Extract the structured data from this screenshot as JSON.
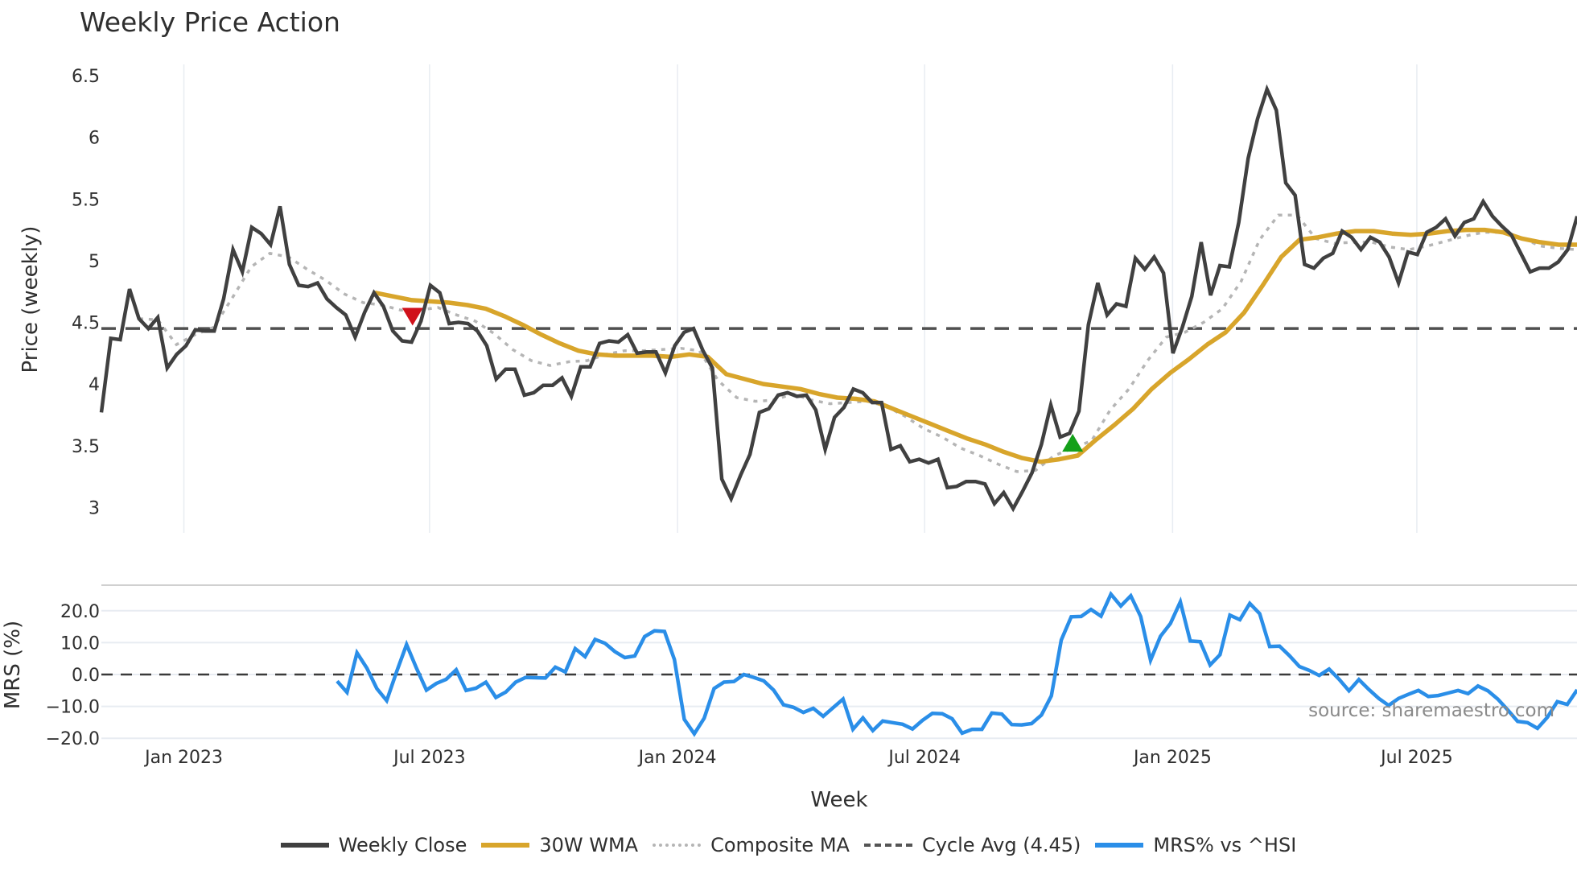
{
  "title": "Weekly Price Action",
  "legend": [
    {
      "key": "close",
      "label": "Weekly Close"
    },
    {
      "key": "wma",
      "label": "30W WMA"
    },
    {
      "key": "comp",
      "label": "Composite MA"
    },
    {
      "key": "cycle",
      "label": "Cycle Avg (4.45)"
    },
    {
      "key": "mrs",
      "label": "MRS% vs ^HSI"
    }
  ],
  "colors": {
    "close": "#404040",
    "wma": "#d8a52b",
    "composite": "#b5b5b5",
    "cycle": "#505050",
    "mrs": "#2a8ee8",
    "bearish_marker": "#d0111b",
    "bullish_marker": "#14a01a",
    "grid": "#e8ecf2",
    "divider": "#d0d0d0"
  },
  "source_text": "source: sharemaestro.com",
  "chart_data": [
    {
      "type": "line",
      "title": "Weekly Price Action",
      "xlabel": "Week",
      "ylabel": "Price (weekly)",
      "ylim": [
        2.8,
        6.6
      ],
      "yticks": [
        3,
        3.5,
        4,
        4.5,
        5,
        5.5,
        6,
        6.5
      ],
      "ytick_labels": [
        "3",
        "3.5",
        "4",
        "4.5",
        "5",
        "5.5",
        "6",
        "6.5"
      ],
      "x_unit": "week index (0 = early Nov 2022)",
      "x_range": [
        0,
        156.5
      ],
      "xticks": [
        {
          "w": 8.75,
          "label": "Jan 2023"
        },
        {
          "w": 34.8,
          "label": "Jul 2023"
        },
        {
          "w": 61.1,
          "label": "Jan 2024"
        },
        {
          "w": 87.3,
          "label": "Jul 2024"
        },
        {
          "w": 113.6,
          "label": "Jan 2025"
        },
        {
          "w": 139.5,
          "label": "Jul 2025"
        }
      ],
      "grid": {
        "vertical": true,
        "horizontal": false
      },
      "cycle_avg": 4.45,
      "series": [
        {
          "name": "Weekly Close",
          "start": 0,
          "end": 156.5,
          "values": [
            3.77,
            4.37,
            4.36,
            4.77,
            4.53,
            4.45,
            4.54,
            4.13,
            4.24,
            4.31,
            4.44,
            4.43,
            4.43,
            4.69,
            5.09,
            4.91,
            5.27,
            5.22,
            5.13,
            5.44,
            4.97,
            4.8,
            4.79,
            4.82,
            4.69,
            4.62,
            4.56,
            4.38,
            4.58,
            4.74,
            4.63,
            4.43,
            4.35,
            4.34,
            4.51,
            4.8,
            4.74,
            4.49,
            4.5,
            4.49,
            4.43,
            4.31,
            4.04,
            4.12,
            4.12,
            3.91,
            3.93,
            3.99,
            3.99,
            4.05,
            3.9,
            4.14,
            4.14,
            4.33,
            4.35,
            4.34,
            4.4,
            4.25,
            4.26,
            4.26,
            4.09,
            4.31,
            4.42,
            4.45,
            4.27,
            4.13,
            3.23,
            3.07,
            3.26,
            3.43,
            3.77,
            3.8,
            3.91,
            3.93,
            3.9,
            3.91,
            3.79,
            3.47,
            3.73,
            3.81,
            3.96,
            3.93,
            3.85,
            3.85,
            3.47,
            3.5,
            3.37,
            3.39,
            3.36,
            3.39,
            3.16,
            3.17,
            3.21,
            3.21,
            3.19,
            3.03,
            3.12,
            2.99,
            3.13,
            3.28,
            3.51,
            3.83,
            3.57,
            3.6,
            3.78,
            4.48,
            4.82,
            4.56,
            4.65,
            4.63,
            5.02,
            4.93,
            5.03,
            4.9,
            4.25,
            4.46,
            4.71,
            5.15,
            4.72,
            4.96,
            4.95,
            5.31,
            5.83,
            6.15,
            6.39,
            6.22,
            5.63,
            5.53,
            4.97,
            4.94,
            5.02,
            5.06,
            5.24,
            5.19,
            5.09,
            5.19,
            5.15,
            5.03,
            4.82,
            5.07,
            5.05,
            5.23,
            5.27,
            5.34,
            5.2,
            5.31,
            5.34,
            5.48,
            5.36,
            5.28,
            5.21,
            5.06,
            4.91,
            4.94,
            4.94,
            4.99,
            5.09,
            5.36
          ]
        },
        {
          "name": "30W WMA",
          "start": 29,
          "end": 156.5,
          "values": [
            4.74,
            4.71,
            4.68,
            4.67,
            4.66,
            4.64,
            4.61,
            4.55,
            4.48,
            4.4,
            4.33,
            4.27,
            4.24,
            4.23,
            4.23,
            4.23,
            4.22,
            4.24,
            4.22,
            4.08,
            4.04,
            4.0,
            3.98,
            3.96,
            3.92,
            3.89,
            3.88,
            3.86,
            3.8,
            3.74,
            3.68,
            3.62,
            3.56,
            3.51,
            3.45,
            3.4,
            3.37,
            3.39,
            3.42,
            3.55,
            3.67,
            3.8,
            3.96,
            4.09,
            4.2,
            4.32,
            4.42,
            4.58,
            4.8,
            5.03,
            5.17,
            5.19,
            5.22,
            5.24,
            5.24,
            5.22,
            5.21,
            5.22,
            5.24,
            5.25,
            5.25,
            5.23,
            5.18,
            5.15,
            5.13,
            5.13
          ]
        },
        {
          "name": "Composite MA",
          "start": 4,
          "end": 156.5,
          "values": [
            4.53,
            4.52,
            4.32,
            4.4,
            4.46,
            4.7,
            4.95,
            5.06,
            5.03,
            4.93,
            4.84,
            4.73,
            4.66,
            4.64,
            4.6,
            4.6,
            4.62,
            4.56,
            4.51,
            4.41,
            4.28,
            4.19,
            4.15,
            4.18,
            4.19,
            4.24,
            4.27,
            4.27,
            4.28,
            4.29,
            4.27,
            4.03,
            3.89,
            3.86,
            3.87,
            3.92,
            3.87,
            3.84,
            3.85,
            3.86,
            3.82,
            3.74,
            3.64,
            3.57,
            3.48,
            3.42,
            3.35,
            3.29,
            3.3,
            3.42,
            3.48,
            3.54,
            3.79,
            3.96,
            4.19,
            4.38,
            4.42,
            4.5,
            4.61,
            4.83,
            5.17,
            5.37,
            5.37,
            5.18,
            5.14,
            5.15,
            5.15,
            5.11,
            5.09,
            5.12,
            5.16,
            5.2,
            5.23,
            5.23,
            5.19,
            5.12,
            5.1,
            5.09
          ]
        },
        {
          "name": "Cycle Avg (4.45)",
          "start": 0,
          "end": 156.5,
          "values": [
            4.45,
            4.45
          ]
        }
      ],
      "markers": [
        {
          "type": "bearish",
          "shape": "triangle-down",
          "w": 33,
          "value": 4.55
        },
        {
          "type": "bullish",
          "shape": "triangle-up",
          "w": 103,
          "value": 3.52
        }
      ]
    },
    {
      "type": "line",
      "title": "",
      "xlabel": "Week",
      "ylabel": "MRS (%)",
      "ylim": [
        -21,
        26
      ],
      "yticks": [
        -20,
        -10,
        0,
        10,
        20
      ],
      "ytick_labels": [
        "−20.0",
        "−10.0",
        "0.0",
        "10.0",
        "20.0"
      ],
      "zero_line": 0,
      "grid": {
        "vertical": false,
        "horizontal": true
      },
      "series": [
        {
          "name": "MRS% vs ^HSI",
          "start": 25,
          "end": 156.5,
          "values": [
            -2.1,
            -5.6,
            6.8,
            2.0,
            -4.4,
            -8.2,
            0.9,
            9.4,
            2.0,
            -4.9,
            -2.8,
            -1.5,
            1.5,
            -5.0,
            -4.3,
            -2.4,
            -7.2,
            -5.5,
            -2.4,
            -0.9,
            -1.0,
            -1.1,
            2.3,
            0.8,
            8.1,
            5.6,
            11.0,
            9.8,
            7.2,
            5.3,
            5.8,
            11.9,
            13.7,
            13.5,
            4.7,
            -14.1,
            -18.6,
            -13.7,
            -4.4,
            -2.4,
            -2.2,
            0.0,
            -0.9,
            -2.0,
            -4.9,
            -9.5,
            -10.3,
            -11.9,
            -10.6,
            -13.1,
            -10.4,
            -7.7,
            -17.2,
            -13.6,
            -17.6,
            -14.6,
            -15.1,
            -15.6,
            -17.1,
            -14.4,
            -12.2,
            -12.3,
            -13.9,
            -18.4,
            -17.2,
            -17.2,
            -12.1,
            -12.4,
            -15.7,
            -15.8,
            -15.4,
            -12.7,
            -6.7,
            10.8,
            18.1,
            18.2,
            20.4,
            18.3,
            25.2,
            21.5,
            24.7,
            18.2,
            4.5,
            12.0,
            16.0,
            22.8,
            10.5,
            10.3,
            3.0,
            6.2,
            18.6,
            17.2,
            22.3,
            19.1,
            8.8,
            8.9,
            5.9,
            2.5,
            1.3,
            -0.3,
            1.7,
            -1.5,
            -5.1,
            -1.6,
            -4.7,
            -7.5,
            -9.7,
            -7.5,
            -6.2,
            -5.0,
            -6.9,
            -6.6,
            -5.8,
            -5.0,
            -6.0,
            -3.6,
            -5.1,
            -7.7,
            -11.1,
            -14.7,
            -15.1,
            -16.9,
            -13.4,
            -8.5,
            -9.4,
            -4.8
          ]
        }
      ]
    }
  ]
}
